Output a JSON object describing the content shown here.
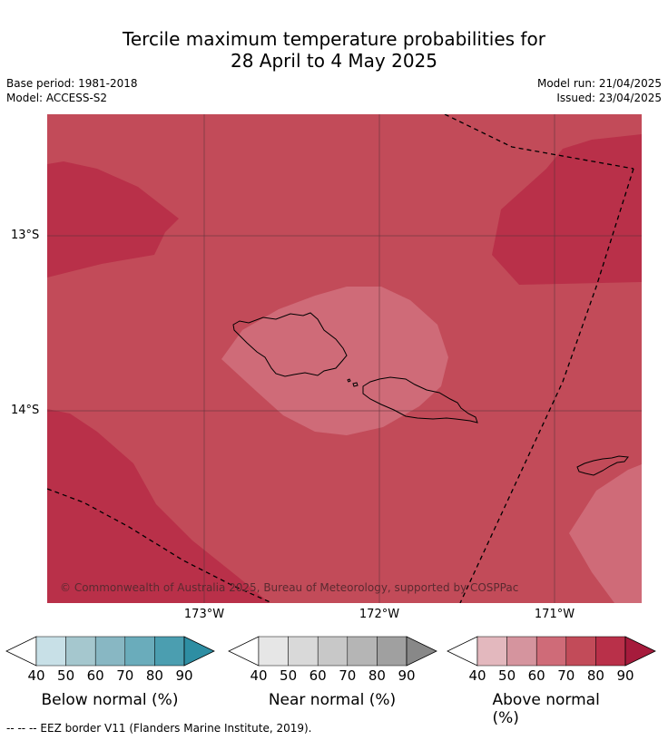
{
  "title": {
    "line1": "Tercile maximum temperature probabilities for",
    "line2": "28 April to 4 May 2025"
  },
  "meta": {
    "base_period": "Base period: 1981-2018",
    "model": "Model: ACCESS-S2",
    "model_run": "Model run: 21/04/2025",
    "issued": "Issued: 23/04/2025"
  },
  "map": {
    "lat_labels": [
      "13°S",
      "14°S"
    ],
    "lon_labels": [
      "173°W",
      "172°W",
      "171°W"
    ],
    "copyright": "© Commonwealth of Australia 2025, Bureau of Meteorology, supported by COSPPac",
    "colors": {
      "above_60": "#cf6b78",
      "above_70": "#c24b59",
      "above_80": "#b93049"
    }
  },
  "colorbars": {
    "ticks": [
      "40",
      "50",
      "60",
      "70",
      "80",
      "90"
    ],
    "below": {
      "label": "Below normal (%)",
      "colors": [
        "#c8e0e7",
        "#a5c7ce",
        "#88b7c3",
        "#6aacbb",
        "#4b9eb0",
        "#2e8ea3"
      ]
    },
    "near": {
      "label": "Near normal (%)",
      "colors": [
        "#e6e6e6",
        "#d9d9d9",
        "#c8c8c8",
        "#b5b5b5",
        "#a0a0a0",
        "#888888"
      ]
    },
    "above": {
      "label": "Above normal (%)",
      "colors": [
        "#e3b8be",
        "#d5949e",
        "#cf6b78",
        "#c24b59",
        "#b93049",
        "#a61b3c"
      ]
    }
  },
  "footnote": "--  --  -- EEZ border V11 (Flanders Marine Institute, 2019)."
}
